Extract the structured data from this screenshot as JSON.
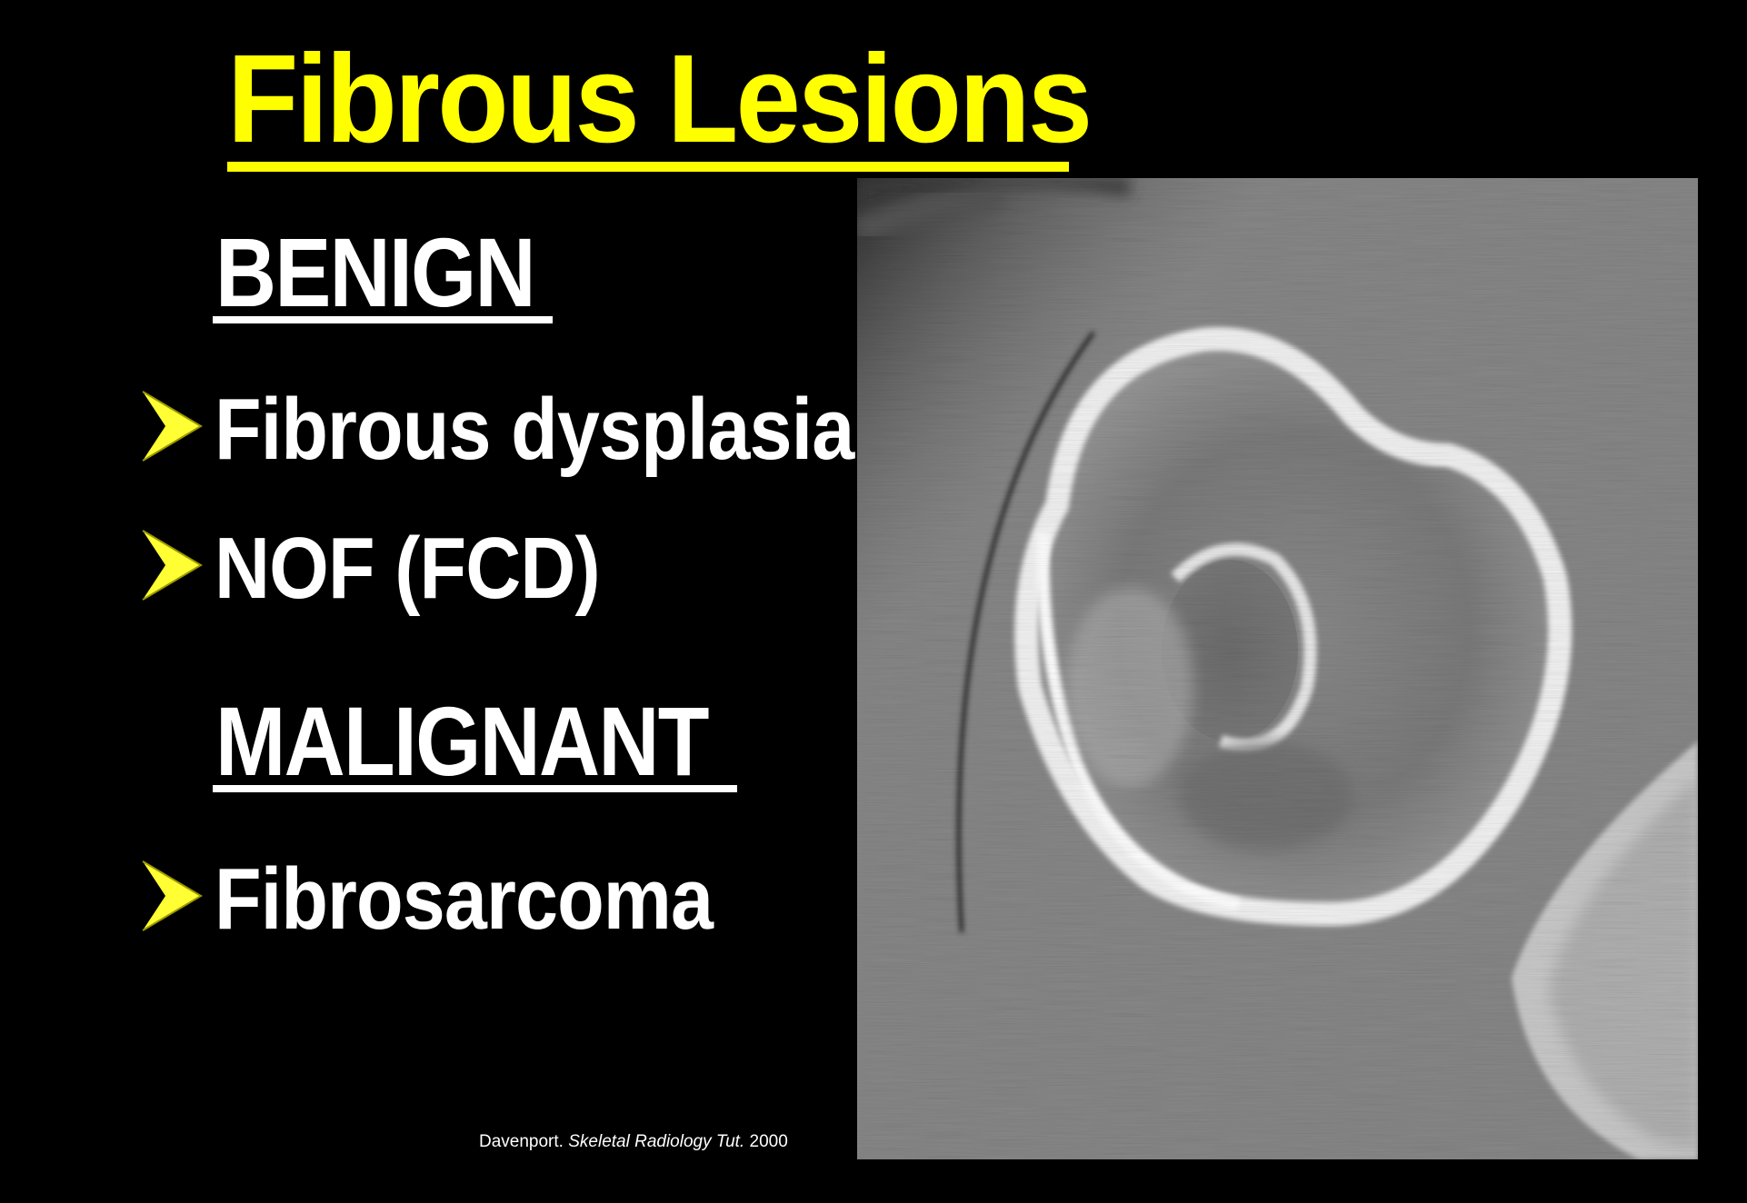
{
  "slide": {
    "title": "Fibrous Lesions",
    "benign_heading": "BENIGN",
    "benign_items": [
      "Fibrous dysplasia",
      "NOF (FCD)"
    ],
    "malignant_heading": "MALIGNANT",
    "malignant_items": [
      "Fibrosarcoma"
    ],
    "citation": {
      "author": "Davenport.",
      "source": "Skeletal Radiology Tut.",
      "year": "2000"
    }
  },
  "colors": {
    "title": "#ffff00",
    "text": "#ffffff",
    "bullet_arrow": "#ffff33",
    "background": "#000000"
  },
  "image": {
    "kind": "axial CT scan of bone"
  }
}
